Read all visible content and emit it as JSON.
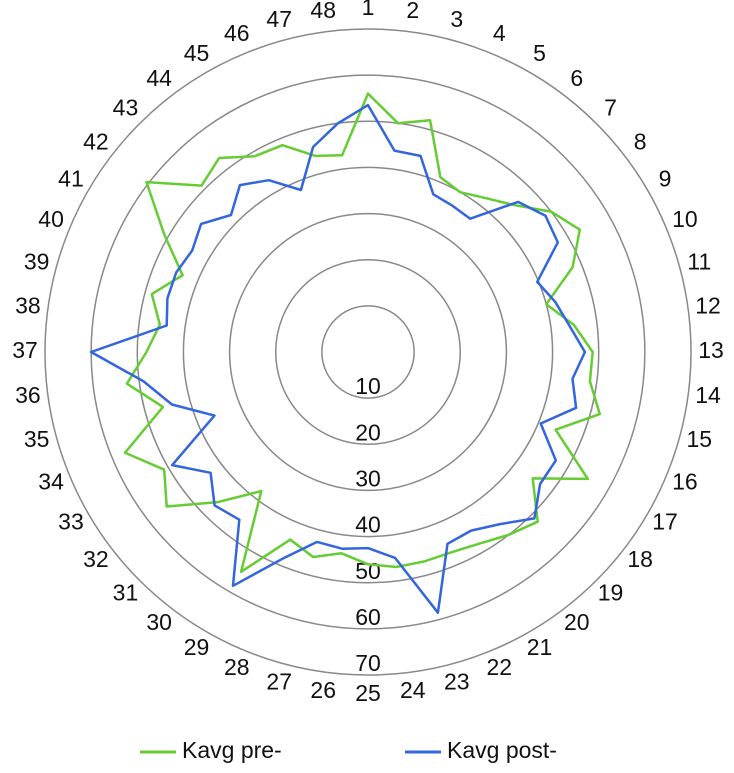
{
  "chart_data": {
    "type": "radar",
    "categories": [
      "1",
      "2",
      "3",
      "4",
      "5",
      "6",
      "7",
      "8",
      "9",
      "10",
      "11",
      "12",
      "13",
      "14",
      "15",
      "16",
      "17",
      "18",
      "19",
      "20",
      "21",
      "22",
      "23",
      "24",
      "25",
      "26",
      "27",
      "28",
      "29",
      "30",
      "31",
      "32",
      "33",
      "34",
      "35",
      "36",
      "37",
      "38",
      "39",
      "40",
      "41",
      "42",
      "43",
      "44",
      "45",
      "46",
      "47",
      "48"
    ],
    "series": [
      {
        "name": "Kavg pre-",
        "color": "#66cc33",
        "values": [
          56,
          50,
          52,
          41,
          40,
          42,
          45,
          50,
          53,
          48,
          40,
          45,
          48.7,
          48.5,
          52,
          44,
          55,
          45,
          52,
          50,
          48,
          47,
          47,
          47,
          46,
          44,
          46,
          44,
          55,
          38,
          46,
          55,
          51,
          57,
          46,
          52.7,
          48,
          45.5,
          48.5,
          43.5,
          51,
          60.5,
          51,
          53,
          49,
          48.5,
          44,
          43
        ]
      },
      {
        "name": "Kavg post-",
        "color": "#3366dd",
        "values": [
          53.5,
          44,
          44,
          37,
          36.6,
          36.4,
          46,
          48.5,
          47.5,
          39.7,
          42,
          44,
          47,
          44.7,
          46.7,
          40.5,
          47,
          47,
          51,
          47,
          44.7,
          45,
          58.5,
          45,
          42.5,
          43,
          42.6,
          48.5,
          58.5,
          45.8,
          47,
          43,
          49,
          36,
          44,
          49,
          60,
          44,
          45,
          45,
          44,
          45.6,
          42,
          45.6,
          43,
          38,
          46,
          50
        ]
      }
    ],
    "ylim": [
      0,
      70
    ],
    "yticks": [
      10,
      20,
      30,
      40,
      50,
      60,
      70
    ],
    "grid": true,
    "legend": "bottom"
  }
}
